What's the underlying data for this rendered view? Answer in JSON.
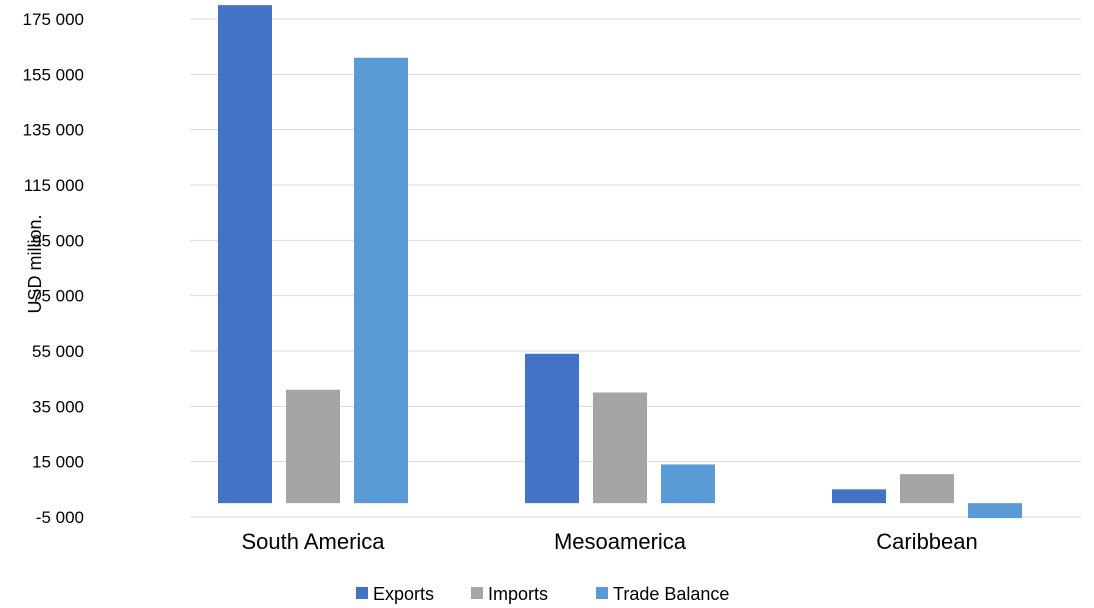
{
  "chart_data": {
    "type": "bar",
    "title": "",
    "xlabel": "",
    "ylabel": "USD million.",
    "categories": [
      "South America",
      "Mesoamerica",
      "Caribbean"
    ],
    "series": [
      {
        "name": "Exports",
        "color": "#4472C4",
        "values": [
          180000,
          54000,
          5000
        ]
      },
      {
        "name": "Imports",
        "color": "#A5A5A5",
        "values": [
          41000,
          40000,
          10500
        ]
      },
      {
        "name": "Trade Balance",
        "color": "#5B9BD5",
        "values": [
          161000,
          14000,
          -5400
        ]
      }
    ],
    "ylim": [
      -5000,
      177000
    ],
    "yticks": [
      -5000,
      15000,
      35000,
      55000,
      75000,
      95000,
      115000,
      135000,
      155000,
      175000
    ],
    "ytick_labels": [
      "-5 000",
      "15 000",
      "35 000",
      "55 000",
      "75 000",
      "95 000",
      "115 000",
      "135 000",
      "155 000",
      "175 000"
    ],
    "grid": true,
    "legend_position": "bottom"
  }
}
